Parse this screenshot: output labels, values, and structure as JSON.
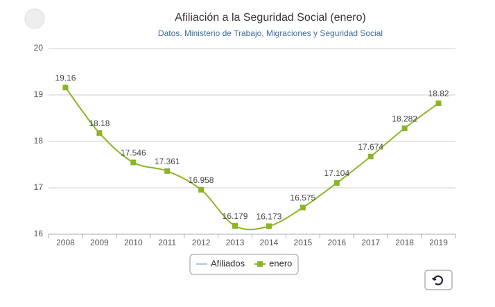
{
  "chart_data": {
    "type": "line",
    "title": "Afiliación a la Seguridad Social (enero)",
    "subtitle": "Datos. Ministerio de Trabajo, Migraciones y Seguridad Social",
    "categories": [
      "2008",
      "2009",
      "2010",
      "2011",
      "2012",
      "2013",
      "2014",
      "2015",
      "2016",
      "2017",
      "2018",
      "2019"
    ],
    "series": [
      {
        "name": "Afiliados",
        "color": "#b0c4de",
        "values": [
          null,
          null,
          null,
          null,
          null,
          null,
          null,
          null,
          null,
          null,
          null,
          null
        ]
      },
      {
        "name": "enero",
        "color": "#8ab526",
        "values": [
          19.16,
          18.18,
          17.546,
          17.361,
          16.958,
          16.179,
          16.173,
          16.575,
          17.104,
          17.674,
          18.282,
          18.82
        ]
      }
    ],
    "ylim": [
      16,
      20
    ],
    "yticks": [
      16,
      17,
      18,
      19,
      20
    ],
    "grid": true,
    "legend": "bottom"
  }
}
